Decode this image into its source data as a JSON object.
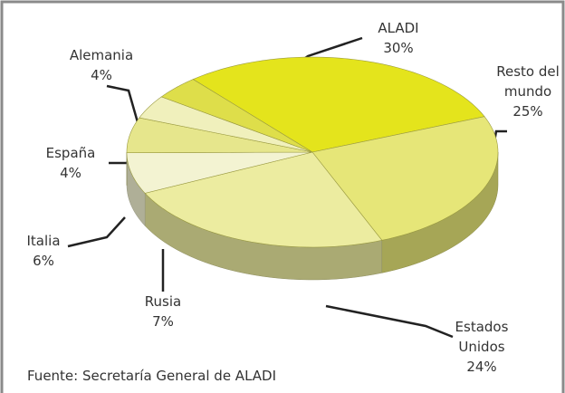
{
  "chart_data": {
    "type": "pie3d",
    "categories": [
      "ALADI",
      "Resto del mundo",
      "Estados Unidos",
      "Rusia",
      "Italia",
      "España",
      "Alemania"
    ],
    "values": [
      30,
      25,
      24,
      7,
      6,
      4,
      4
    ],
    "value_labels": [
      "30%",
      "25%",
      "24%",
      "7%",
      "6%",
      "4%",
      "4%"
    ],
    "colors": [
      "#e4e41c",
      "#e6e678",
      "#ececa0",
      "#f3f3d2",
      "#e6e68c",
      "#f0f0bc",
      "#dede4a"
    ],
    "annotation": "Fuente:  Secretaría General de ALADI"
  }
}
